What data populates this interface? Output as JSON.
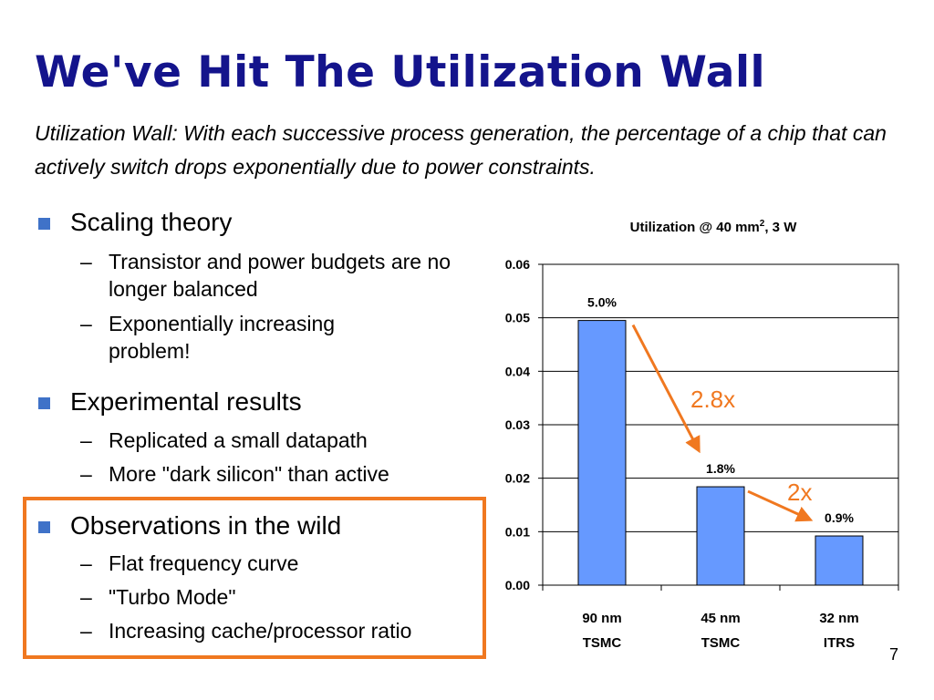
{
  "slide": {
    "title": "We've Hit The Utilization Wall",
    "subtitle": "Utilization Wall: With each successive process generation, the percentage of a chip that can actively switch drops exponentially due to power constraints.",
    "page_number": "7"
  },
  "bullets": [
    {
      "label": "Scaling theory",
      "sub": [
        "Transistor and power budgets are no longer balanced",
        "Exponentially increasing problem!"
      ]
    },
    {
      "label": "Experimental results",
      "sub": [
        "Replicated a small datapath",
        "More \"dark silicon\" than active"
      ]
    },
    {
      "label": "Observations in the wild",
      "sub": [
        "Flat frequency curve",
        "\"Turbo Mode\"",
        "Increasing cache/processor ratio"
      ]
    }
  ],
  "colors": {
    "title": "#14148c",
    "bullet_square": "#3f72c8",
    "bar_fill": "#6699ff",
    "arrow": "#f07820",
    "highlight_box": "#f07820"
  },
  "chart_data": {
    "type": "bar",
    "title": "Utilization @ 40 mm², 3 W",
    "categories": [
      "90 nm",
      "45 nm",
      "32 nm"
    ],
    "category_sublabels": [
      "TSMC",
      "TSMC",
      "ITRS"
    ],
    "values": [
      0.0495,
      0.0184,
      0.0092
    ],
    "data_labels": [
      "5.0%",
      "1.8%",
      "0.9%"
    ],
    "ylim": [
      0,
      0.06
    ],
    "yticks": [
      "0.00",
      "0.01",
      "0.02",
      "0.03",
      "0.04",
      "0.05",
      "0.06"
    ],
    "grid": true,
    "annotations": [
      {
        "text": "2.8x",
        "from": "90 nm",
        "to": "45 nm"
      },
      {
        "text": "2x",
        "from": "45 nm",
        "to": "32 nm"
      }
    ]
  }
}
